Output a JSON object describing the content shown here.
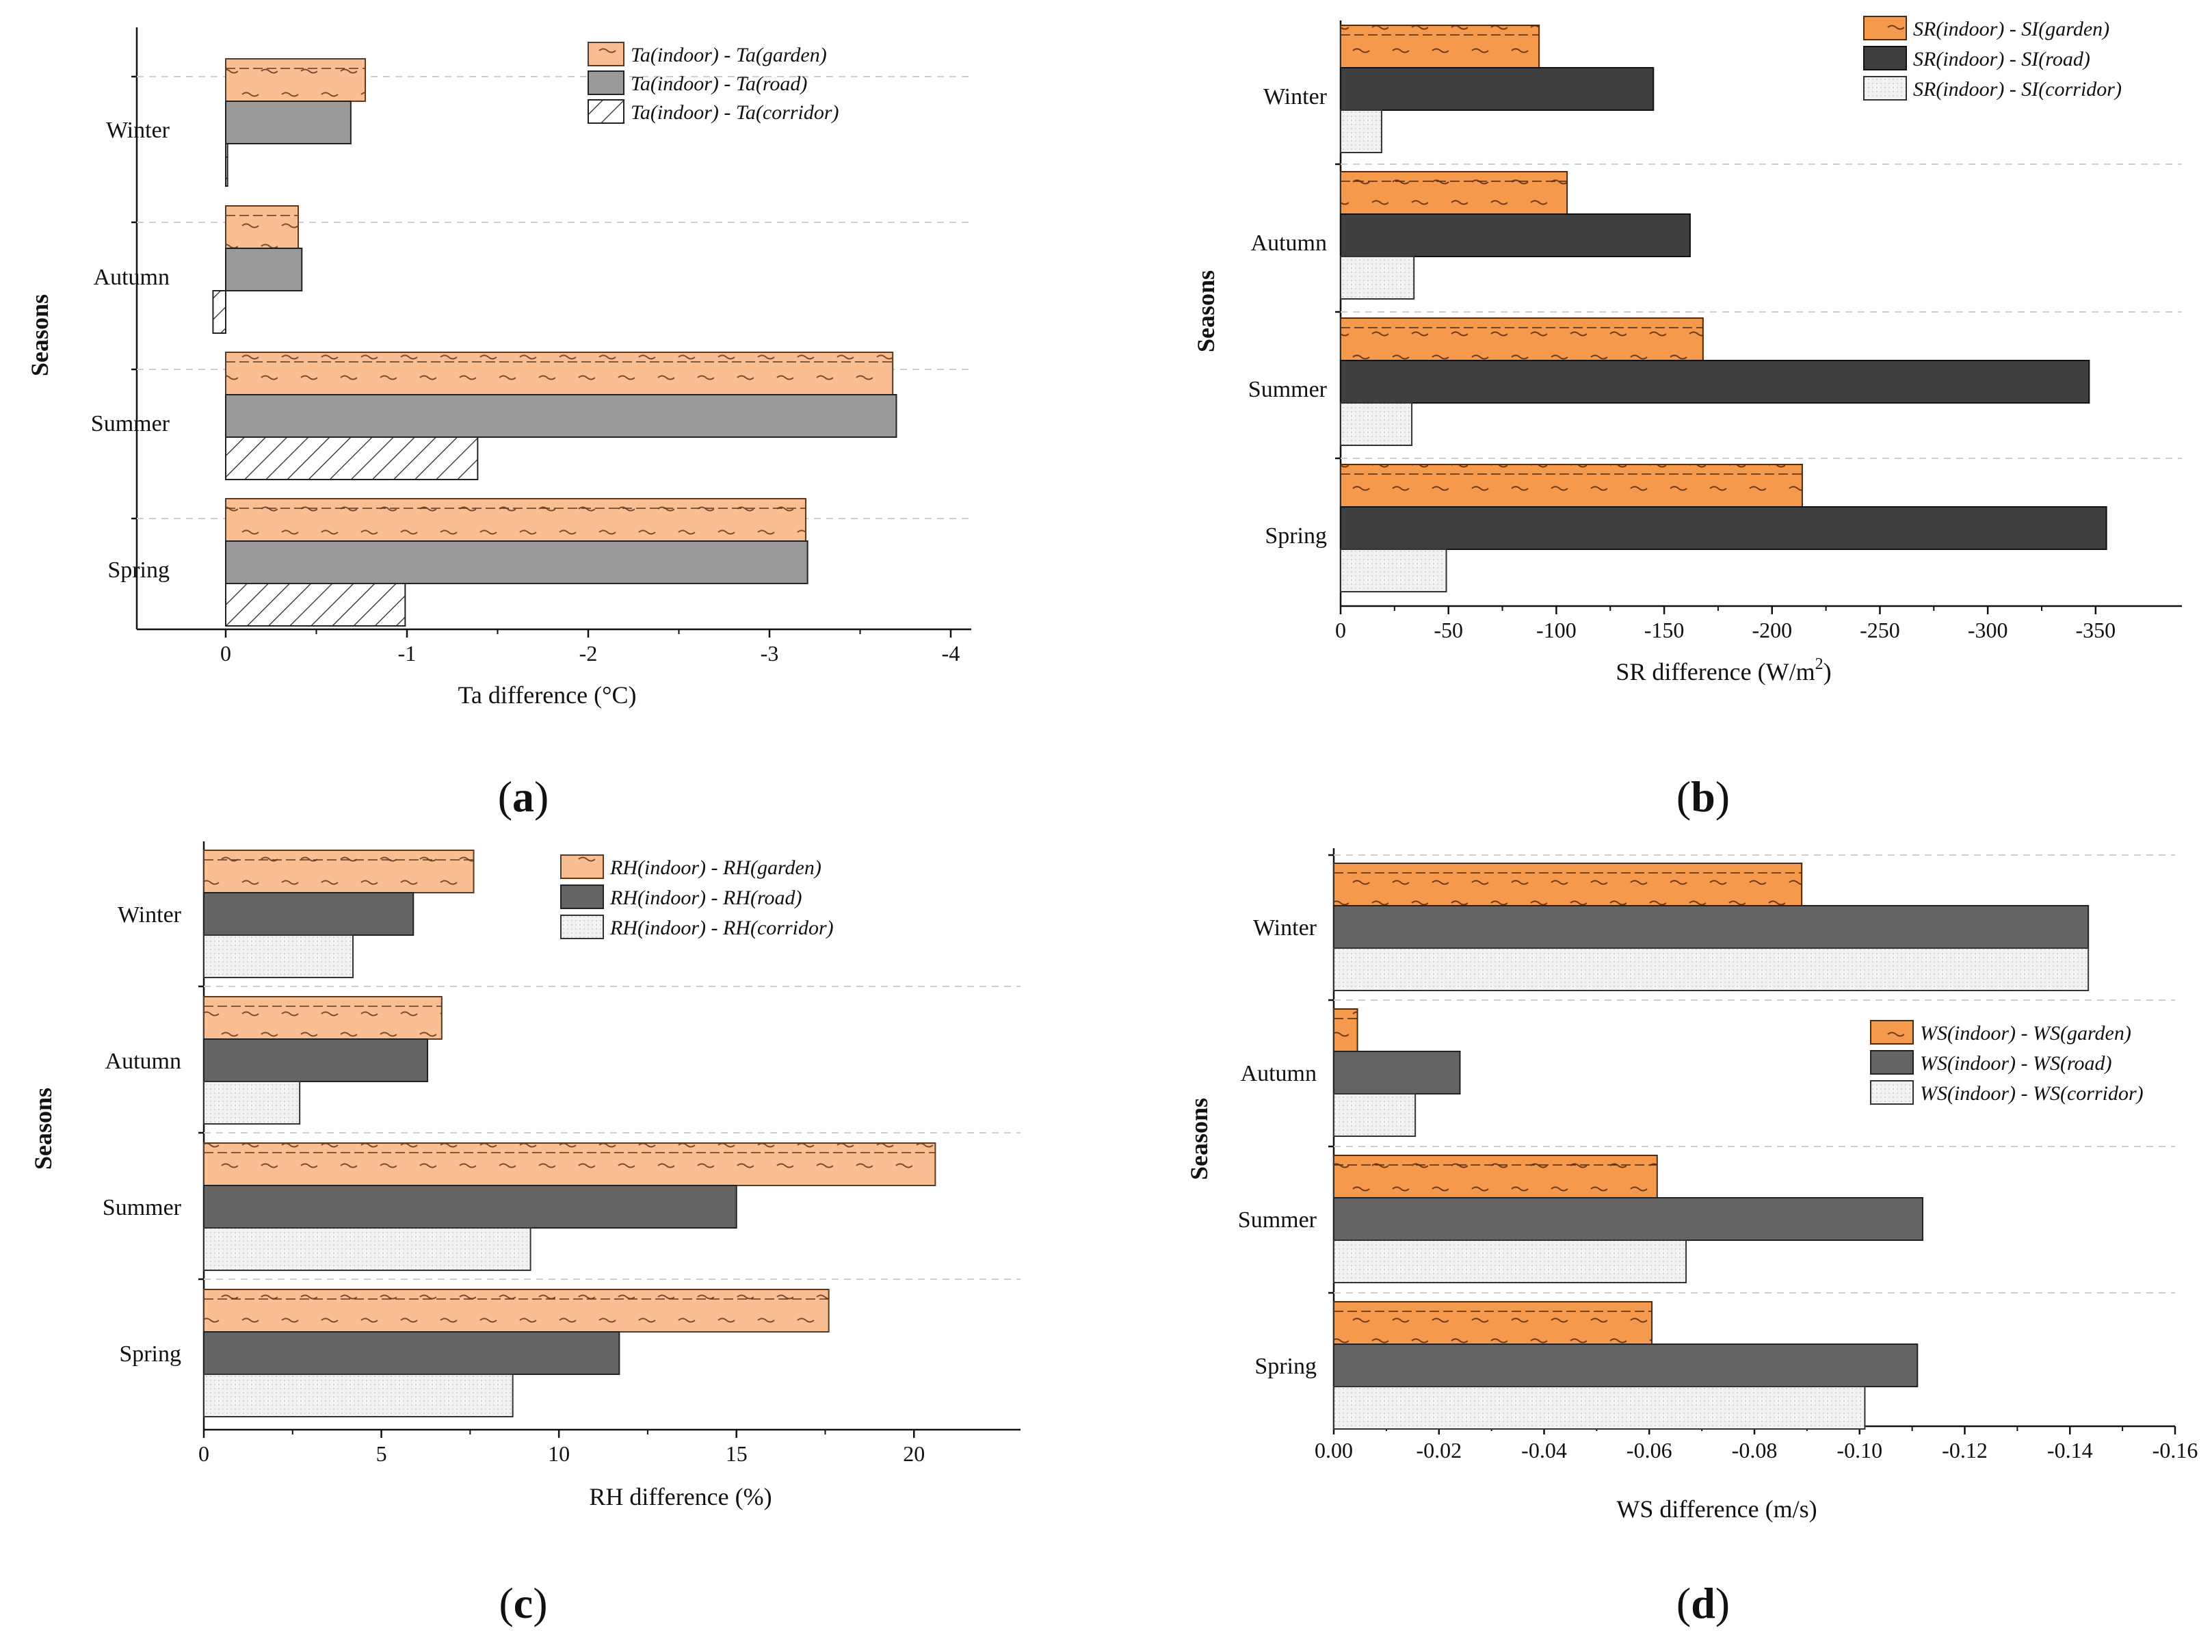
{
  "chart_data": [
    {
      "panel": "a",
      "type": "bar",
      "orientation": "horizontal",
      "panel_label": "(a)",
      "panel_letter": "a",
      "xlabel": "Ta difference  (°C)",
      "ylabel": "Seasons",
      "categories": [
        "Winter",
        "Autumn",
        "Summer",
        "Spring"
      ],
      "xlim": [
        0.5,
        -4.1
      ],
      "xticks": [
        0,
        -1,
        -2,
        -3,
        -4
      ],
      "xtick_labels": [
        "0",
        "-1",
        "-2",
        "-3",
        "-4"
      ],
      "series": [
        {
          "name": "Ta(indoor) - Ta(garden)",
          "values": [
            -0.77,
            -0.4,
            -3.68,
            -3.2
          ],
          "style": "orange-wave"
        },
        {
          "name": "Ta(indoor) - Ta(road)",
          "values": [
            -0.69,
            -0.42,
            -3.7,
            -3.21
          ],
          "style": "gray"
        },
        {
          "name": "Ta(indoor) - Ta(corridor)",
          "values": [
            -0.01,
            0.07,
            -1.39,
            -0.99
          ],
          "style": "hatch"
        }
      ],
      "legend_position": "top-right",
      "grid": "horizontal-dashed"
    },
    {
      "panel": "b",
      "type": "bar",
      "orientation": "horizontal",
      "panel_label": "(b)",
      "panel_letter": "b",
      "xlabel": "SR difference (W/m",
      "xlabel_sup": "2",
      "xlabel_end": ")",
      "ylabel": "Seasons",
      "categories": [
        "Winter",
        "Autumn",
        "Summer",
        "Spring"
      ],
      "xlim": [
        0,
        -390
      ],
      "xticks": [
        0,
        -50,
        -100,
        -150,
        -200,
        -250,
        -300,
        -350
      ],
      "xtick_labels": [
        "0",
        "-50",
        "-100",
        "-150",
        "-200",
        "-250",
        "-300",
        "-350"
      ],
      "series": [
        {
          "name": "SR(indoor) - SI(garden)",
          "values": [
            -92,
            -105,
            -168,
            -214
          ],
          "style": "orange-wave"
        },
        {
          "name": "SR(indoor) - SI(road)",
          "values": [
            -145,
            -162,
            -347,
            -355
          ],
          "style": "dark"
        },
        {
          "name": "SR(indoor) - SI(corridor)",
          "values": [
            -19,
            -34,
            -33,
            -49
          ],
          "style": "light-dots"
        }
      ],
      "legend_position": "top-right",
      "grid": "horizontal-dashed"
    },
    {
      "panel": "c",
      "type": "bar",
      "orientation": "horizontal",
      "panel_label": "(c)",
      "panel_letter": "c",
      "xlabel": "RH difference (%)",
      "ylabel": "Seasons",
      "categories": [
        "Winter",
        "Autumn",
        "Summer",
        "Spring"
      ],
      "xlim": [
        0,
        23
      ],
      "xticks": [
        0,
        5,
        10,
        15,
        20
      ],
      "xtick_labels": [
        "0",
        "5",
        "10",
        "15",
        "20"
      ],
      "series": [
        {
          "name": "RH(indoor) - RH(garden)",
          "values": [
            7.6,
            6.7,
            20.6,
            17.6
          ],
          "style": "orange-wave"
        },
        {
          "name": "RH(indoor) - RH(road)",
          "values": [
            5.9,
            6.3,
            15.0,
            11.7
          ],
          "style": "gray-dark"
        },
        {
          "name": "RH(indoor) - RH(corridor)",
          "values": [
            4.2,
            2.7,
            9.2,
            8.7
          ],
          "style": "light-dots"
        }
      ],
      "legend_position": "top-right",
      "grid": "horizontal-dashed"
    },
    {
      "panel": "d",
      "type": "bar",
      "orientation": "horizontal",
      "panel_label": "(d)",
      "panel_letter": "d",
      "xlabel": "WS difference (m/s)",
      "ylabel": "Seasons",
      "categories": [
        "Winter",
        "Autumn",
        "Summer",
        "Spring"
      ],
      "xlim": [
        0,
        -0.16
      ],
      "xticks": [
        0,
        -0.02,
        -0.04,
        -0.06,
        -0.08,
        -0.1,
        -0.12,
        -0.14,
        -0.16
      ],
      "xtick_labels": [
        "0.00",
        "-0.02",
        "-0.04",
        "-0.06",
        "-0.08",
        "-0.10",
        "-0.12",
        "-0.14",
        "-0.16"
      ],
      "series": [
        {
          "name": "WS(indoor) - WS(garden)",
          "values": [
            -0.089,
            -0.0045,
            -0.0615,
            -0.0605
          ],
          "style": "orange-wave"
        },
        {
          "name": "WS(indoor) - WS(road)",
          "values": [
            -0.1435,
            -0.024,
            -0.112,
            -0.111
          ],
          "style": "gray-dark"
        },
        {
          "name": "WS(indoor) - WS(corridor)",
          "values": [
            -0.1435,
            -0.0155,
            -0.067,
            -0.101
          ],
          "style": "light-dots"
        }
      ],
      "legend_position": "middle-right",
      "grid": "horizontal-dashed"
    }
  ]
}
